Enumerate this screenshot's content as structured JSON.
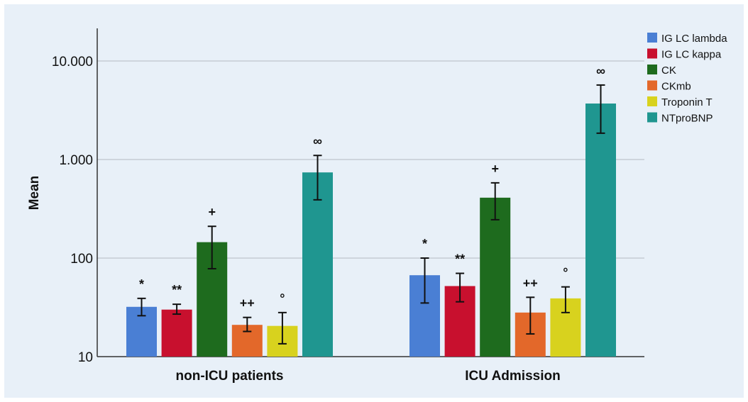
{
  "chart_data": {
    "type": "bar",
    "title": "",
    "xlabel": "",
    "ylabel": "Mean",
    "yscale": "log",
    "ylim": [
      10,
      13000
    ],
    "yticks": [
      10,
      100,
      1000,
      10000
    ],
    "ytick_labels": [
      "10",
      "100",
      "1.000",
      "10.000"
    ],
    "categories": [
      "non-ICU patients",
      "ICU Admission"
    ],
    "grid": "horizontal",
    "legend_position": "top-right",
    "series": [
      {
        "name": "IG LC lambda",
        "color": "#4a7fd4",
        "values": [
          32,
          67
        ],
        "err_low": [
          26,
          35
        ],
        "err_high": [
          39,
          100
        ],
        "annotation": "*"
      },
      {
        "name": "IG LC kappa",
        "color": "#c8102e",
        "values": [
          30,
          52
        ],
        "err_low": [
          27,
          36
        ],
        "err_high": [
          34,
          70
        ],
        "annotation": "**"
      },
      {
        "name": "CK",
        "color": "#1e6b1e",
        "values": [
          145,
          410
        ],
        "err_low": [
          78,
          245
        ],
        "err_high": [
          210,
          580
        ],
        "annotation": "+"
      },
      {
        "name": "CKmb",
        "color": "#e3682a",
        "values": [
          21,
          28
        ],
        "err_low": [
          18,
          17
        ],
        "err_high": [
          25,
          40
        ],
        "annotation": "++"
      },
      {
        "name": "Troponin T",
        "color": "#d8d21e",
        "values": [
          20.5,
          39
        ],
        "err_low": [
          13.5,
          28
        ],
        "err_high": [
          28,
          51
        ],
        "annotation": "°"
      },
      {
        "name": "NTproBNP",
        "color": "#1f9690",
        "values": [
          740,
          3700
        ],
        "err_low": [
          390,
          1850
        ],
        "err_high": [
          1100,
          5700
        ],
        "annotation": "∞"
      }
    ]
  }
}
